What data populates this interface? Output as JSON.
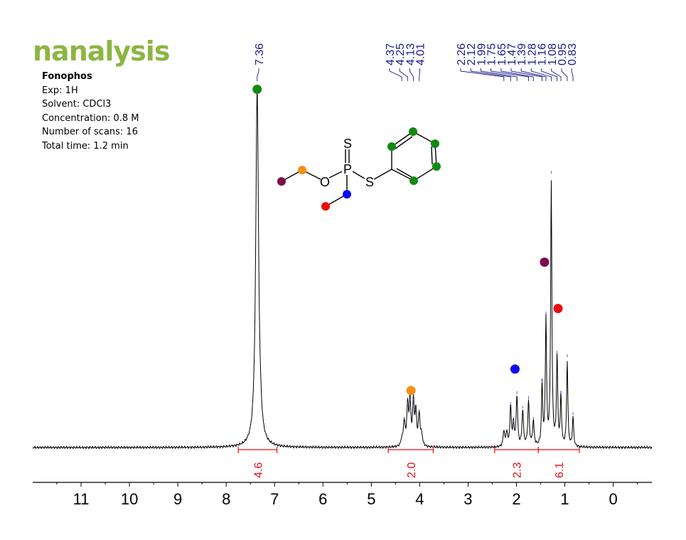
{
  "brand": {
    "logo_text": "nanalysis",
    "color": "#8db543"
  },
  "sample": {
    "name": "Fonophos",
    "experiment": "Exp: 1H",
    "solvent": "Solvent: CDCl3",
    "concentration": "Concentration: 0.8 M",
    "scans": "Number of scans: 16",
    "total_time": "Total time: 1.2 min"
  },
  "molecule": {
    "atoms": {
      "sulfur_double": "S",
      "phosphorus": "P",
      "oxygen": "O",
      "sulfur_thio": "S"
    },
    "marker_colors": {
      "aromatic": "#118a11",
      "och2": "#f39016",
      "ch3_ethoxy": "#7a0f4a",
      "pch2": "#0b0bef",
      "ch3_pethyl": "#ef0b0b"
    }
  },
  "chart_data": {
    "type": "line",
    "title": "",
    "xlabel": "",
    "ylabel": "",
    "x_axis": {
      "reversed": true,
      "xlim": [
        12.0,
        -0.8
      ],
      "tick_labels": [
        "11",
        "10",
        "9",
        "8",
        "7",
        "6",
        "5",
        "4",
        "3",
        "2",
        "1",
        "0"
      ]
    },
    "grid": false,
    "peak_label_color": "#1a1a8c",
    "integral_color": "#e8101a",
    "peak_labels": [
      "7.36",
      "4.37",
      "4.25",
      "4.13",
      "4.01",
      "2.26",
      "2.12",
      "1.99",
      "1.75",
      "1.65",
      "1.47",
      "1.39",
      "1.28",
      "1.16",
      "1.08",
      "0.95",
      "0.83"
    ],
    "peaks": [
      {
        "ppm": 7.36,
        "height": 1.0,
        "width": 0.035
      },
      {
        "ppm": 7.29,
        "height": 0.02,
        "width": 0.03
      },
      {
        "ppm": 4.37,
        "height": 0.018,
        "width": 0.02
      },
      {
        "ppm": 4.32,
        "height": 0.07,
        "width": 0.02
      },
      {
        "ppm": 4.25,
        "height": 0.11,
        "width": 0.02
      },
      {
        "ppm": 4.2,
        "height": 0.12,
        "width": 0.02
      },
      {
        "ppm": 4.13,
        "height": 0.12,
        "width": 0.02
      },
      {
        "ppm": 4.08,
        "height": 0.09,
        "width": 0.02
      },
      {
        "ppm": 4.01,
        "height": 0.09,
        "width": 0.02
      },
      {
        "ppm": 3.96,
        "height": 0.03,
        "width": 0.02
      },
      {
        "ppm": 2.26,
        "height": 0.045,
        "width": 0.018
      },
      {
        "ppm": 2.2,
        "height": 0.04,
        "width": 0.018
      },
      {
        "ppm": 2.12,
        "height": 0.11,
        "width": 0.018
      },
      {
        "ppm": 2.06,
        "height": 0.06,
        "width": 0.018
      },
      {
        "ppm": 1.99,
        "height": 0.14,
        "width": 0.018
      },
      {
        "ppm": 1.87,
        "height": 0.1,
        "width": 0.018
      },
      {
        "ppm": 1.75,
        "height": 0.126,
        "width": 0.018
      },
      {
        "ppm": 1.65,
        "height": 0.07,
        "width": 0.018
      },
      {
        "ppm": 1.47,
        "height": 0.17,
        "width": 0.015
      },
      {
        "ppm": 1.39,
        "height": 0.357,
        "width": 0.015
      },
      {
        "ppm": 1.28,
        "height": 0.74,
        "width": 0.015
      },
      {
        "ppm": 1.16,
        "height": 0.25,
        "width": 0.015
      },
      {
        "ppm": 1.08,
        "height": 0.14,
        "width": 0.015
      },
      {
        "ppm": 0.95,
        "height": 0.24,
        "width": 0.015
      },
      {
        "ppm": 0.83,
        "height": 0.083,
        "width": 0.015
      }
    ],
    "integrals": [
      {
        "label": "4.6",
        "from": 7.75,
        "to": 6.95
      },
      {
        "label": "2.0",
        "from": 4.65,
        "to": 3.72
      },
      {
        "label": "2.3",
        "from": 2.45,
        "to": 1.55
      },
      {
        "label": "6.1",
        "from": 1.55,
        "to": 0.7
      }
    ],
    "markers": [
      {
        "ppm": 7.36,
        "color": "#118a11",
        "height": 1.005
      },
      {
        "ppm": 4.18,
        "color": "#f39016",
        "height": 0.16
      },
      {
        "ppm": 1.42,
        "color": "#7a0f4a",
        "height": 0.52
      },
      {
        "ppm": 1.14,
        "color": "#ef0b0b",
        "height": 0.39
      },
      {
        "ppm": 2.03,
        "color": "#0b0bef",
        "height": 0.22
      }
    ]
  }
}
